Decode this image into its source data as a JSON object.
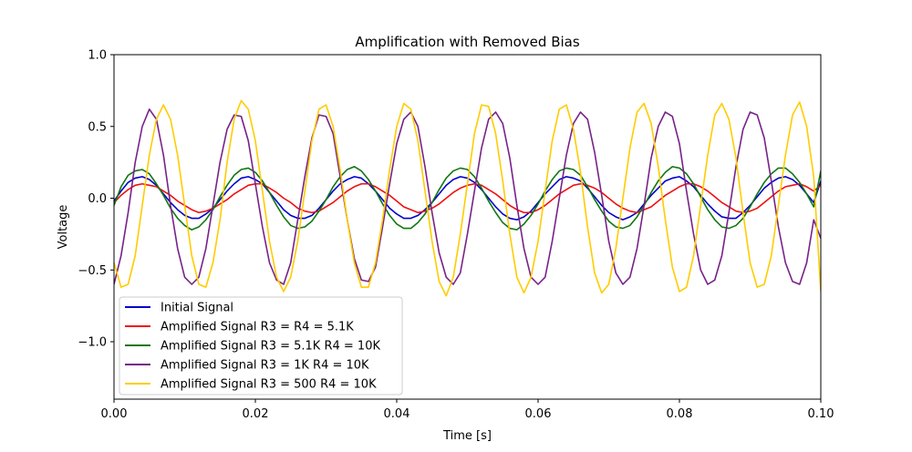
{
  "chart_data": {
    "type": "line",
    "title": "Amplification with Removed Bias",
    "xlabel": "Time [s]",
    "ylabel": "Voltage",
    "xlim": [
      0.0,
      0.1
    ],
    "ylim": [
      -1.4,
      1.0
    ],
    "x_ticks": [
      0.0,
      0.02,
      0.04,
      0.06,
      0.08,
      0.1
    ],
    "x_tick_labels": [
      "0.00",
      "0.02",
      "0.04",
      "0.06",
      "0.08",
      "0.10"
    ],
    "y_ticks": [
      -1.0,
      -0.5,
      0.0,
      0.5,
      1.0
    ],
    "y_tick_labels": [
      "−1.0",
      "−0.5",
      "0.0",
      "0.5",
      "1.0"
    ],
    "grid": false,
    "legend_position": "lower-left",
    "x": [
      0.0,
      0.001,
      0.002,
      0.003,
      0.004,
      0.005,
      0.006,
      0.007,
      0.008,
      0.009,
      0.01,
      0.011,
      0.012,
      0.013,
      0.014,
      0.015,
      0.016,
      0.017,
      0.018,
      0.019,
      0.02,
      0.021,
      0.022,
      0.023,
      0.024,
      0.025,
      0.026,
      0.027,
      0.028,
      0.029,
      0.03,
      0.031,
      0.032,
      0.033,
      0.034,
      0.035,
      0.036,
      0.037,
      0.038,
      0.039,
      0.04,
      0.041,
      0.042,
      0.043,
      0.044,
      0.045,
      0.046,
      0.047,
      0.048,
      0.049,
      0.05,
      0.051,
      0.052,
      0.053,
      0.054,
      0.055,
      0.056,
      0.057,
      0.058,
      0.059,
      0.06,
      0.061,
      0.062,
      0.063,
      0.064,
      0.065,
      0.066,
      0.067,
      0.068,
      0.069,
      0.07,
      0.071,
      0.072,
      0.073,
      0.074,
      0.075,
      0.076,
      0.077,
      0.078,
      0.079,
      0.08,
      0.081,
      0.082,
      0.083,
      0.084,
      0.085,
      0.086,
      0.087,
      0.088,
      0.089,
      0.09,
      0.091,
      0.092,
      0.093,
      0.094,
      0.095,
      0.096,
      0.097,
      0.098,
      0.099,
      0.1
    ],
    "series": [
      {
        "name": "Initial Signal",
        "color": "#0000cc",
        "values": [
          -0.02,
          0.05,
          0.11,
          0.14,
          0.15,
          0.13,
          0.09,
          0.03,
          -0.03,
          -0.08,
          -0.12,
          -0.14,
          -0.14,
          -0.11,
          -0.07,
          -0.01,
          0.05,
          0.1,
          0.14,
          0.15,
          0.13,
          0.1,
          0.04,
          -0.02,
          -0.08,
          -0.12,
          -0.14,
          -0.14,
          -0.12,
          -0.07,
          -0.01,
          0.05,
          0.1,
          0.13,
          0.15,
          0.14,
          0.1,
          0.05,
          -0.01,
          -0.07,
          -0.11,
          -0.14,
          -0.14,
          -0.12,
          -0.08,
          -0.03,
          0.03,
          0.09,
          0.13,
          0.15,
          0.14,
          0.11,
          0.06,
          0.0,
          -0.06,
          -0.11,
          -0.14,
          -0.15,
          -0.13,
          -0.09,
          -0.03,
          0.03,
          0.08,
          0.13,
          0.15,
          0.14,
          0.12,
          0.07,
          0.01,
          -0.05,
          -0.1,
          -0.13,
          -0.15,
          -0.13,
          -0.1,
          -0.04,
          0.02,
          0.07,
          0.12,
          0.14,
          0.15,
          0.12,
          0.08,
          0.02,
          -0.04,
          -0.09,
          -0.13,
          -0.14,
          -0.14,
          -0.1,
          -0.05,
          0.01,
          0.07,
          0.11,
          0.14,
          0.15,
          0.13,
          0.09,
          0.03,
          -0.03,
          0.12
        ]
      },
      {
        "name": "Amplified Signal R3 = R4 = 5.1K",
        "color": "#ee1111",
        "values": [
          -0.03,
          0.02,
          0.06,
          0.09,
          0.1,
          0.09,
          0.08,
          0.05,
          0.02,
          -0.02,
          -0.05,
          -0.08,
          -0.1,
          -0.09,
          -0.07,
          -0.04,
          -0.01,
          0.03,
          0.06,
          0.09,
          0.1,
          0.1,
          0.07,
          0.04,
          0.0,
          -0.03,
          -0.07,
          -0.09,
          -0.1,
          -0.09,
          -0.06,
          -0.03,
          0.01,
          0.05,
          0.08,
          0.1,
          0.1,
          0.08,
          0.05,
          0.02,
          -0.02,
          -0.06,
          -0.08,
          -0.1,
          -0.09,
          -0.07,
          -0.04,
          0.0,
          0.04,
          0.07,
          0.09,
          0.1,
          0.09,
          0.06,
          0.03,
          -0.01,
          -0.05,
          -0.08,
          -0.1,
          -0.1,
          -0.08,
          -0.05,
          -0.01,
          0.03,
          0.06,
          0.09,
          0.1,
          0.09,
          0.07,
          0.04,
          0.0,
          -0.04,
          -0.07,
          -0.09,
          -0.1,
          -0.08,
          -0.06,
          -0.02,
          0.02,
          0.05,
          0.08,
          0.1,
          0.1,
          0.08,
          0.05,
          0.01,
          -0.03,
          -0.06,
          -0.09,
          -0.1,
          -0.09,
          -0.07,
          -0.03,
          0.01,
          0.05,
          0.08,
          0.09,
          0.1,
          0.08,
          0.05,
          0.09
        ]
      },
      {
        "name": "Amplified Signal R3 = 5.1K R4 = 10K",
        "color": "#117711",
        "values": [
          -0.05,
          0.08,
          0.16,
          0.19,
          0.2,
          0.17,
          0.1,
          0.02,
          -0.07,
          -0.14,
          -0.19,
          -0.22,
          -0.2,
          -0.15,
          -0.08,
          0.01,
          0.09,
          0.16,
          0.2,
          0.21,
          0.18,
          0.12,
          0.04,
          -0.05,
          -0.13,
          -0.19,
          -0.21,
          -0.2,
          -0.16,
          -0.09,
          -0.01,
          0.08,
          0.15,
          0.2,
          0.22,
          0.19,
          0.13,
          0.05,
          -0.04,
          -0.12,
          -0.18,
          -0.21,
          -0.21,
          -0.17,
          -0.11,
          -0.03,
          0.06,
          0.14,
          0.19,
          0.21,
          0.2,
          0.15,
          0.07,
          -0.02,
          -0.1,
          -0.17,
          -0.21,
          -0.22,
          -0.18,
          -0.12,
          -0.04,
          0.05,
          0.13,
          0.19,
          0.21,
          0.2,
          0.16,
          0.08,
          -0.01,
          -0.09,
          -0.16,
          -0.2,
          -0.21,
          -0.19,
          -0.13,
          -0.05,
          0.04,
          0.12,
          0.18,
          0.22,
          0.21,
          0.17,
          0.1,
          0.01,
          -0.08,
          -0.15,
          -0.2,
          -0.21,
          -0.19,
          -0.14,
          -0.06,
          0.03,
          0.11,
          0.17,
          0.21,
          0.21,
          0.17,
          0.11,
          0.03,
          -0.06,
          0.19
        ]
      },
      {
        "name": "Amplified Signal R3 = 1K R4 = 10K",
        "color": "#772288",
        "values": [
          -0.6,
          -0.4,
          -0.1,
          0.25,
          0.5,
          0.62,
          0.55,
          0.3,
          -0.05,
          -0.35,
          -0.55,
          -0.6,
          -0.55,
          -0.35,
          -0.05,
          0.25,
          0.48,
          0.58,
          0.57,
          0.4,
          0.1,
          -0.2,
          -0.45,
          -0.57,
          -0.6,
          -0.45,
          -0.15,
          0.15,
          0.42,
          0.58,
          0.57,
          0.45,
          0.15,
          -0.15,
          -0.42,
          -0.57,
          -0.58,
          -0.48,
          -0.2,
          0.1,
          0.38,
          0.55,
          0.6,
          0.5,
          0.22,
          -0.1,
          -0.38,
          -0.55,
          -0.6,
          -0.52,
          -0.25,
          0.05,
          0.35,
          0.55,
          0.6,
          0.52,
          0.28,
          -0.05,
          -0.35,
          -0.55,
          -0.6,
          -0.55,
          -0.3,
          0.0,
          0.3,
          0.52,
          0.6,
          0.55,
          0.32,
          0.02,
          -0.3,
          -0.52,
          -0.6,
          -0.55,
          -0.35,
          -0.05,
          0.28,
          0.5,
          0.6,
          0.57,
          0.38,
          0.05,
          -0.25,
          -0.5,
          -0.6,
          -0.57,
          -0.4,
          -0.1,
          0.22,
          0.48,
          0.6,
          0.58,
          0.42,
          0.12,
          -0.2,
          -0.45,
          -0.58,
          -0.6,
          -0.45,
          -0.15,
          -0.28
        ]
      },
      {
        "name": "Amplified Signal R3 = 500 R4 = 10K",
        "color": "#ffcc00",
        "values": [
          -0.45,
          -0.62,
          -0.6,
          -0.4,
          -0.05,
          0.3,
          0.55,
          0.65,
          0.55,
          0.3,
          -0.05,
          -0.4,
          -0.6,
          -0.62,
          -0.45,
          -0.15,
          0.25,
          0.55,
          0.68,
          0.62,
          0.4,
          0.05,
          -0.3,
          -0.55,
          -0.65,
          -0.55,
          -0.3,
          0.05,
          0.4,
          0.62,
          0.65,
          0.5,
          0.2,
          -0.15,
          -0.45,
          -0.62,
          -0.62,
          -0.45,
          -0.15,
          0.2,
          0.5,
          0.66,
          0.62,
          0.4,
          0.05,
          -0.3,
          -0.58,
          -0.68,
          -0.55,
          -0.25,
          0.1,
          0.45,
          0.65,
          0.64,
          0.45,
          0.12,
          -0.25,
          -0.55,
          -0.66,
          -0.55,
          -0.3,
          0.05,
          0.4,
          0.62,
          0.65,
          0.48,
          0.18,
          -0.2,
          -0.52,
          -0.66,
          -0.6,
          -0.35,
          0.0,
          0.35,
          0.6,
          0.66,
          0.52,
          0.22,
          -0.15,
          -0.48,
          -0.65,
          -0.62,
          -0.4,
          -0.05,
          0.3,
          0.58,
          0.66,
          0.55,
          0.28,
          -0.1,
          -0.45,
          -0.62,
          -0.6,
          -0.4,
          -0.05,
          0.3,
          0.58,
          0.67,
          0.5,
          0.15,
          -0.65
        ]
      }
    ]
  }
}
